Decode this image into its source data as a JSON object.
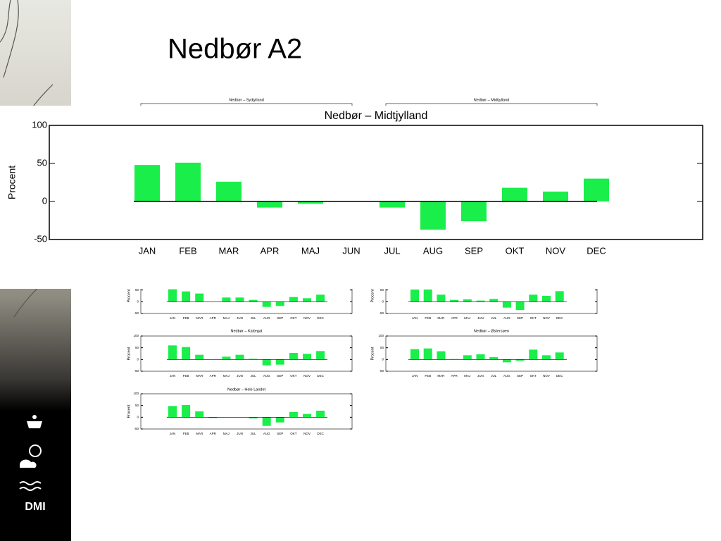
{
  "slide_title": "Nedbør A2",
  "logo": "DMI",
  "chart_data": [
    {
      "type": "bar",
      "title": "Nedbør – Midtjylland",
      "ylabel": "Procent",
      "color": "#1aee4a",
      "categories": [
        "JAN",
        "FEB",
        "MAR",
        "APR",
        "MAJ",
        "JUN",
        "JUL",
        "AUG",
        "SEP",
        "OKT",
        "NOV",
        "DEC"
      ],
      "values": [
        48,
        51,
        26,
        -8,
        -3,
        0,
        -8,
        -37,
        -26,
        18,
        13,
        30
      ],
      "ylim": [
        -50,
        100
      ],
      "yticks": [
        -50,
        0,
        50,
        100
      ]
    },
    {
      "type": "bar",
      "title": "Nedbør – Sydjylland",
      "ylabel": "Procent",
      "color": "#1aee4a",
      "categories": [
        "JAN",
        "FEB",
        "MAR",
        "APR",
        "MAJ",
        "JUN",
        "JUL",
        "AUG",
        "SEP",
        "OKT",
        "NOV",
        "DEC"
      ],
      "values": [
        53,
        44,
        35,
        0,
        18,
        18,
        8,
        -22,
        -18,
        20,
        15,
        30
      ],
      "ylim": [
        -50,
        100
      ],
      "yticks": [
        -50,
        0,
        50,
        100
      ]
    },
    {
      "type": "bar",
      "title": "Nedbør – Midtjylland",
      "ylabel": "Procent",
      "color": "#1aee4a",
      "categories": [
        "JAN",
        "FEB",
        "MAR",
        "APR",
        "MAJ",
        "JUN",
        "JUL",
        "AUG",
        "SEP",
        "OKT",
        "NOV",
        "DEC"
      ],
      "values": [
        52,
        52,
        30,
        8,
        10,
        5,
        12,
        -25,
        -35,
        30,
        25,
        45
      ],
      "ylim": [
        -50,
        100
      ],
      "yticks": [
        -50,
        0,
        50,
        100
      ]
    },
    {
      "type": "bar",
      "title": "Nedbør – Kattegat",
      "ylabel": "Procent",
      "color": "#1aee4a",
      "categories": [
        "JAN",
        "FEB",
        "MAR",
        "APR",
        "MAJ",
        "JUN",
        "JUL",
        "AUG",
        "SEP",
        "OKT",
        "NOV",
        "DEC"
      ],
      "values": [
        60,
        53,
        20,
        0,
        12,
        20,
        3,
        -25,
        -22,
        28,
        24,
        36
      ],
      "ylim": [
        -50,
        100
      ],
      "yticks": [
        -50,
        0,
        50,
        100
      ]
    },
    {
      "type": "bar",
      "title": "Nedbør – Østersøen",
      "ylabel": "Procent",
      "color": "#1aee4a",
      "categories": [
        "JAN",
        "FEB",
        "MAR",
        "APR",
        "MAJ",
        "JUN",
        "JUL",
        "AUG",
        "SEP",
        "OKT",
        "NOV",
        "DEC"
      ],
      "values": [
        44,
        47,
        35,
        2,
        18,
        22,
        10,
        -12,
        -5,
        42,
        18,
        30
      ],
      "ylim": [
        -50,
        100
      ],
      "yticks": [
        -50,
        0,
        50,
        100
      ]
    },
    {
      "type": "bar",
      "title": "Nedbør – Hele Landet",
      "ylabel": "Procent",
      "color": "#1aee4a",
      "categories": [
        "JAN",
        "FEB",
        "MAR",
        "APR",
        "MAJ",
        "JUN",
        "JUL",
        "AUG",
        "SEP",
        "OKT",
        "NOV",
        "DEC"
      ],
      "values": [
        48,
        52,
        25,
        -3,
        0,
        0,
        -5,
        -37,
        -22,
        22,
        14,
        28
      ],
      "ylim": [
        -50,
        100
      ],
      "yticks": [
        -50,
        0,
        50,
        100
      ]
    }
  ]
}
